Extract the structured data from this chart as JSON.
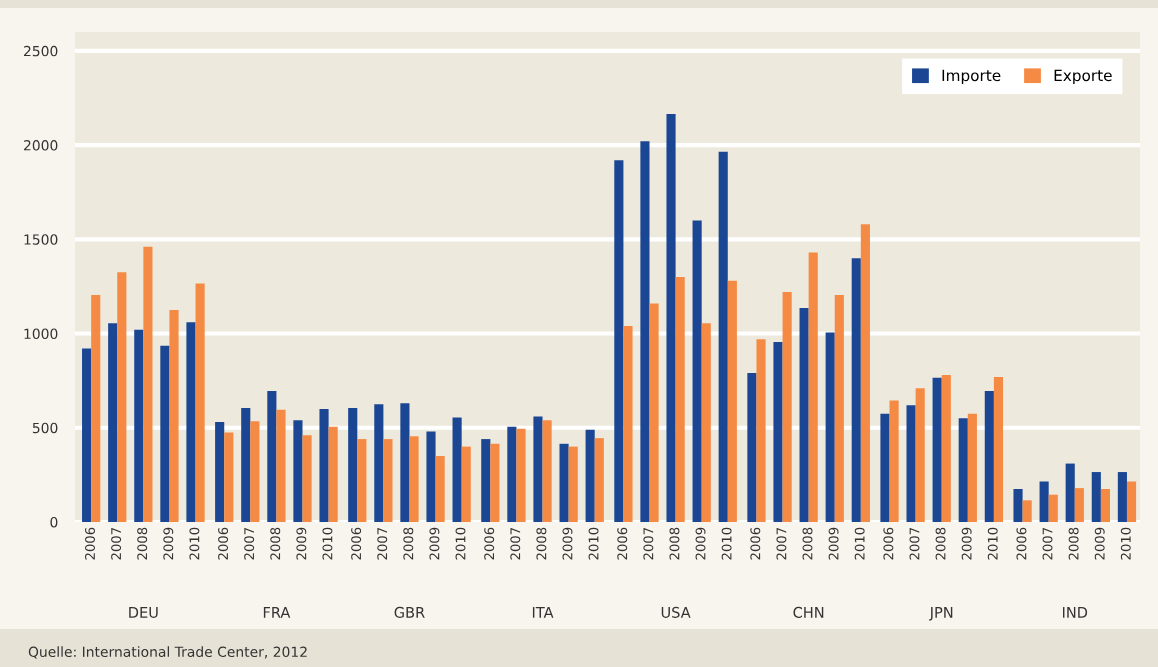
{
  "chart_data": {
    "type": "bar",
    "categories": [
      "2006",
      "2007",
      "2008",
      "2009",
      "2010",
      "2006",
      "2007",
      "2008",
      "2009",
      "2010",
      "2006",
      "2007",
      "2008",
      "2009",
      "2010",
      "2006",
      "2007",
      "2008",
      "2009",
      "2010",
      "2006",
      "2007",
      "2008",
      "2009",
      "2010",
      "2006",
      "2007",
      "2008",
      "2009",
      "2010",
      "2006",
      "2007",
      "2008",
      "2009",
      "2010",
      "2006",
      "2007",
      "2008",
      "2009",
      "2010"
    ],
    "ylim": [
      0,
      2600
    ],
    "yticks": [
      0,
      500,
      1000,
      1500,
      2000,
      2500
    ],
    "grid": "y",
    "legend": "top right",
    "annotations": [
      "DEU",
      "FRA",
      "GBR",
      "ITA",
      "USA",
      "CHN",
      "JPN",
      "IND",
      "Quelle: International Trade Center, 2012"
    ],
    "series": [
      {
        "name": "Importe",
        "color": "#1a4694",
        "values": [
          920,
          1055,
          1020,
          935,
          1060,
          530,
          605,
          695,
          540,
          600,
          605,
          625,
          630,
          480,
          555,
          440,
          505,
          560,
          415,
          490,
          1920,
          2020,
          2165,
          1600,
          1965,
          790,
          955,
          1135,
          1005,
          1400,
          575,
          620,
          765,
          550,
          695,
          175,
          215,
          310,
          265,
          265
        ]
      },
      {
        "name": "Exporte",
        "color": "#f58a45",
        "values": [
          1205,
          1325,
          1460,
          1125,
          1265,
          475,
          535,
          595,
          460,
          505,
          440,
          440,
          455,
          350,
          400,
          415,
          495,
          540,
          400,
          445,
          1040,
          1160,
          1300,
          1055,
          1280,
          970,
          1220,
          1430,
          1205,
          1580,
          645,
          710,
          780,
          575,
          770,
          115,
          145,
          180,
          175,
          215
        ]
      }
    ]
  }
}
